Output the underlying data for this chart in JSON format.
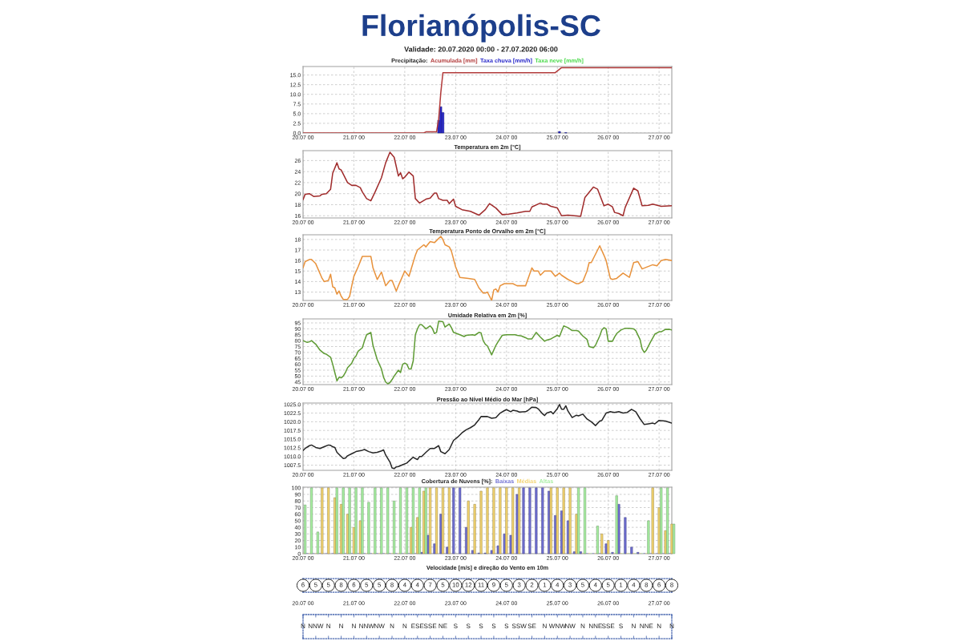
{
  "chart_data": [
    {
      "type": "other",
      "title": "Florianópolis-SC",
      "subtitle": "Validade: 20.07.2020 00:00 - 27.07.2020 06:00"
    },
    {
      "type": "bar",
      "title": "Precipitação:",
      "legend": "top",
      "grid": true,
      "xlim": [
        "2020-07-20T00:00",
        "2020-07-27T06:00"
      ],
      "xticks": [
        {
          "value": "2020-07-20T00:00",
          "label": "20.07 00"
        },
        {
          "value": "2020-07-21T00:00",
          "label": "21.07 00"
        },
        {
          "value": "2020-07-22T00:00",
          "label": "22.07 00"
        },
        {
          "value": "2020-07-23T00:00",
          "label": "23.07 00"
        },
        {
          "value": "2020-07-24T00:00",
          "label": "24.07 00"
        },
        {
          "value": "2020-07-25T00:00",
          "label": "25.07 00"
        },
        {
          "value": "2020-07-26T00:00",
          "label": "26.07 00"
        },
        {
          "value": "2020-07-27T00:00",
          "label": "27.07 00"
        }
      ],
      "ylim": [
        0,
        17.2
      ],
      "yticks": [
        {
          "value": 0,
          "label": "0.0"
        },
        2.5,
        {
          "value": 5,
          "label": "5.0"
        },
        7.5,
        {
          "value": 10,
          "label": "10.0"
        },
        12.5,
        {
          "value": 15,
          "label": "15.0"
        }
      ],
      "series": [
        {
          "name": "Acumulada [mm]",
          "type": "line",
          "color": "#b23b3b",
          "x": [
            "2020-07-20T00:00",
            "2020-07-22T09:00",
            "2020-07-22T10:00",
            "2020-07-22T15:00",
            "2020-07-22T16:00",
            "2020-07-22T17:00",
            "2020-07-22T18:00",
            "2020-07-24T23:00",
            "2020-07-25T02:00",
            "2020-07-27T06:00"
          ],
          "values": [
            0,
            0,
            0.3,
            0.3,
            3.6,
            10.4,
            15.6,
            15.6,
            16.9,
            16.9
          ]
        },
        {
          "name": "Taxa chuva [mm/h]",
          "color": "#2626c9",
          "x": [
            "2020-07-22T16:00",
            "2020-07-22T17:00",
            "2020-07-22T18:00",
            "2020-07-25T01:00",
            "2020-07-25T04:00"
          ],
          "values": [
            3.3,
            6.8,
            5.3,
            0.4,
            0.1
          ]
        },
        {
          "name": "Taxa neve [mm/h]",
          "color": "#44d944"
        }
      ]
    },
    {
      "type": "line",
      "title": "Temperatura em 2m [°C]",
      "grid": true,
      "xlim": [
        "2020-07-20T00:00",
        "2020-07-27T06:00"
      ],
      "xticks": [
        {
          "value": "2020-07-20T00:00",
          "label": "20.07 00"
        },
        {
          "value": "2020-07-21T00:00",
          "label": "21.07 00"
        },
        {
          "value": "2020-07-22T00:00",
          "label": "22.07 00"
        },
        {
          "value": "2020-07-23T00:00",
          "label": "23.07 00"
        },
        {
          "value": "2020-07-24T00:00",
          "label": "24.07 00"
        },
        {
          "value": "2020-07-25T00:00",
          "label": "25.07 00"
        },
        {
          "value": "2020-07-26T00:00",
          "label": "26.07 00"
        },
        {
          "value": "2020-07-27T00:00",
          "label": "27.07 00"
        }
      ],
      "ylim": [
        15.6,
        27.8
      ],
      "yticks": [
        16,
        18,
        20,
        22,
        24,
        26
      ],
      "series": [
        {
          "color": "#a02c2c",
          "x": [
            "2020-07-20T00:00",
            "2020-07-20T01:00",
            "2020-07-20T03:00",
            "2020-07-20T05:00",
            "2020-07-20T08:00",
            "2020-07-20T09:00",
            "2020-07-20T11:00",
            "2020-07-20T13:00",
            "2020-07-20T14:00",
            "2020-07-20T16:00",
            "2020-07-20T17:00",
            "2020-07-20T18:00",
            "2020-07-20T21:00",
            "2020-07-20T23:00",
            "2020-07-21T01:00",
            "2020-07-21T03:00",
            "2020-07-21T04:00",
            "2020-07-21T06:00",
            "2020-07-21T08:00",
            "2020-07-21T10:00",
            "2020-07-21T13:00",
            "2020-07-21T15:00",
            "2020-07-21T17:00",
            "2020-07-21T19:00",
            "2020-07-21T21:00",
            "2020-07-21T22:00",
            "2020-07-21T23:00",
            "2020-07-22T00:00",
            "2020-07-22T02:00",
            "2020-07-22T04:00",
            "2020-07-22T05:00",
            "2020-07-22T07:00",
            "2020-07-22T10:00",
            "2020-07-22T12:00",
            "2020-07-22T14:00",
            "2020-07-22T15:00",
            "2020-07-22T16:00",
            "2020-07-22T18:00",
            "2020-07-22T20:00",
            "2020-07-22T21:00",
            "2020-07-22T23:00",
            "2020-07-23T00:00",
            "2020-07-23T03:00",
            "2020-07-23T07:00",
            "2020-07-23T11:00",
            "2020-07-23T14:00",
            "2020-07-23T16:00",
            "2020-07-23T19:00",
            "2020-07-23T22:00",
            "2020-07-24T01:00",
            "2020-07-24T05:00",
            "2020-07-24T09:00",
            "2020-07-24T11:00",
            "2020-07-24T12:00",
            "2020-07-24T16:00",
            "2020-07-24T17:00",
            "2020-07-24T19:00",
            "2020-07-24T21:00",
            "2020-07-25T00:00",
            "2020-07-25T02:00",
            "2020-07-25T05:00",
            "2020-07-25T11:00",
            "2020-07-25T13:00",
            "2020-07-25T17:00",
            "2020-07-25T19:00",
            "2020-07-25T22:00",
            "2020-07-26T00:00",
            "2020-07-26T02:00",
            "2020-07-26T03:00",
            "2020-07-26T05:00",
            "2020-07-26T07:00",
            "2020-07-26T08:00",
            "2020-07-26T12:00",
            "2020-07-26T14:00",
            "2020-07-26T16:00",
            "2020-07-26T19:00",
            "2020-07-26T21:00",
            "2020-07-27T01:00",
            "2020-07-27T06:00"
          ],
          "values": [
            18.9,
            19.9,
            20.0,
            19.5,
            19.6,
            19.9,
            20.0,
            20.8,
            23.7,
            25.6,
            24.5,
            24.3,
            22.0,
            21.5,
            21.5,
            21.1,
            20.3,
            19.1,
            18.7,
            20.3,
            22.9,
            25.6,
            27.5,
            26.6,
            23.2,
            23.8,
            22.7,
            23.0,
            23.9,
            23.2,
            19.1,
            18.3,
            19.0,
            19.2,
            20.1,
            20.1,
            19.1,
            18.8,
            18.8,
            18.2,
            19.0,
            17.7,
            17.1,
            16.8,
            16.1,
            17.1,
            18.2,
            17.4,
            16.2,
            16.3,
            16.5,
            16.8,
            16.8,
            17.6,
            18.3,
            18.1,
            18.1,
            17.7,
            17.4,
            16.0,
            16.1,
            15.9,
            19.3,
            21.2,
            20.8,
            17.8,
            18.1,
            17.6,
            16.6,
            16.4,
            16.0,
            17.5,
            21.0,
            20.5,
            17.8,
            17.9,
            18.1,
            17.7,
            17.8
          ]
        }
      ]
    },
    {
      "type": "line",
      "title": "Temperatura Ponto de Orvalho em 2m [°C]",
      "grid": true,
      "xlim": [
        "2020-07-20T00:00",
        "2020-07-27T06:00"
      ],
      "xticks": [
        {
          "value": "2020-07-20T00:00",
          "label": "20.07 00"
        },
        {
          "value": "2020-07-21T00:00",
          "label": "21.07 00"
        },
        {
          "value": "2020-07-22T00:00",
          "label": "22.07 00"
        },
        {
          "value": "2020-07-23T00:00",
          "label": "23.07 00"
        },
        {
          "value": "2020-07-24T00:00",
          "label": "24.07 00"
        },
        {
          "value": "2020-07-25T00:00",
          "label": "25.07 00"
        },
        {
          "value": "2020-07-26T00:00",
          "label": "26.07 00"
        },
        {
          "value": "2020-07-27T00:00",
          "label": "27.07 00"
        }
      ],
      "ylim": [
        12.2,
        18.45
      ],
      "yticks": [
        13,
        14,
        15,
        16,
        17,
        18
      ],
      "series": [
        {
          "color": "#e8923c",
          "x": [
            "2020-07-20T00:00",
            "2020-07-20T01:00",
            "2020-07-20T03:00",
            "2020-07-20T04:00",
            "2020-07-20T06:00",
            "2020-07-20T09:00",
            "2020-07-20T10:00",
            "2020-07-20T12:00",
            "2020-07-20T13:00",
            "2020-07-20T14:00",
            "2020-07-20T15:00",
            "2020-07-20T16:00",
            "2020-07-20T17:00",
            "2020-07-20T18:00",
            "2020-07-20T19:00",
            "2020-07-20T21:00",
            "2020-07-20T22:00",
            "2020-07-20T23:00",
            "2020-07-21T00:00",
            "2020-07-21T02:00",
            "2020-07-21T04:00",
            "2020-07-21T08:00",
            "2020-07-21T09:00",
            "2020-07-21T11:00",
            "2020-07-21T13:00",
            "2020-07-21T15:00",
            "2020-07-21T17:00",
            "2020-07-21T18:00",
            "2020-07-21T20:00",
            "2020-07-21T21:00",
            "2020-07-22T00:00",
            "2020-07-22T02:00",
            "2020-07-22T05:00",
            "2020-07-22T06:00",
            "2020-07-22T09:00",
            "2020-07-22T10:00",
            "2020-07-22T12:00",
            "2020-07-22T14:00",
            "2020-07-22T17:00",
            "2020-07-22T18:00",
            "2020-07-22T19:00",
            "2020-07-22T21:00",
            "2020-07-22T22:00",
            "2020-07-23T00:00",
            "2020-07-23T02:00",
            "2020-07-23T06:00",
            "2020-07-23T09:00",
            "2020-07-23T11:00",
            "2020-07-23T13:00",
            "2020-07-23T14:00",
            "2020-07-23T15:00",
            "2020-07-23T16:00",
            "2020-07-23T17:00",
            "2020-07-23T18:00",
            "2020-07-23T19:00",
            "2020-07-23T20:00",
            "2020-07-23T21:00",
            "2020-07-23T23:00",
            "2020-07-24T03:00",
            "2020-07-24T05:00",
            "2020-07-24T09:00",
            "2020-07-24T12:00",
            "2020-07-24T13:00",
            "2020-07-24T15:00",
            "2020-07-24T16:00",
            "2020-07-24T18:00",
            "2020-07-24T21:00",
            "2020-07-24T23:00",
            "2020-07-25T01:00",
            "2020-07-25T02:00",
            "2020-07-25T05:00",
            "2020-07-25T07:00",
            "2020-07-25T09:00",
            "2020-07-25T10:00",
            "2020-07-25T12:00",
            "2020-07-25T14:00",
            "2020-07-25T15:00",
            "2020-07-25T16:00",
            "2020-07-25T17:00",
            "2020-07-25T20:00",
            "2020-07-25T22:00",
            "2020-07-25T23:00",
            "2020-07-26T01:00",
            "2020-07-26T02:00",
            "2020-07-26T04:00",
            "2020-07-26T07:00",
            "2020-07-26T10:00",
            "2020-07-26T12:00",
            "2020-07-26T14:00",
            "2020-07-26T16:00",
            "2020-07-26T21:00",
            "2020-07-26T23:00",
            "2020-07-27T01:00",
            "2020-07-27T03:00",
            "2020-07-27T06:00"
          ],
          "values": [
            15.3,
            15.9,
            16.1,
            16.1,
            15.7,
            14.3,
            14.0,
            14.1,
            14.7,
            13.5,
            13.4,
            12.8,
            13.1,
            12.6,
            12.3,
            12.3,
            12.6,
            13.6,
            14.5,
            15.4,
            16.4,
            16.4,
            15.3,
            14.2,
            14.9,
            13.6,
            14.1,
            14.1,
            13.1,
            13.6,
            15.0,
            14.5,
            16.5,
            17.0,
            17.5,
            17.3,
            17.8,
            17.7,
            18.3,
            18.0,
            17.5,
            17.3,
            16.9,
            15.4,
            14.4,
            14.3,
            14.2,
            13.4,
            12.9,
            12.9,
            13.0,
            12.6,
            12.2,
            13.2,
            13.3,
            13.0,
            13.6,
            13.8,
            13.8,
            13.6,
            13.6,
            15.3,
            15.0,
            15.0,
            14.6,
            15.0,
            15.0,
            14.5,
            14.8,
            14.6,
            14.2,
            14.0,
            13.8,
            13.8,
            14.0,
            15.0,
            15.8,
            15.8,
            16.2,
            17.4,
            16.5,
            16.0,
            14.3,
            14.2,
            14.3,
            14.8,
            14.4,
            15.8,
            15.9,
            15.2,
            15.6,
            15.5,
            16.0,
            16.1,
            16.0
          ]
        }
      ]
    },
    {
      "type": "line",
      "title": "Umidade Relativa em 2m [%]",
      "grid": true,
      "xlim": [
        "2020-07-20T00:00",
        "2020-07-27T06:00"
      ],
      "xticks": [
        {
          "value": "2020-07-20T00:00",
          "label": "20.07 00"
        },
        {
          "value": "2020-07-21T00:00",
          "label": "21.07 00"
        },
        {
          "value": "2020-07-22T00:00",
          "label": "22.07 00"
        },
        {
          "value": "2020-07-23T00:00",
          "label": "23.07 00"
        },
        {
          "value": "2020-07-24T00:00",
          "label": "24.07 00"
        },
        {
          "value": "2020-07-25T00:00",
          "label": "25.07 00"
        },
        {
          "value": "2020-07-26T00:00",
          "label": "26.07 00"
        },
        {
          "value": "2020-07-27T00:00",
          "label": "27.07 00"
        }
      ],
      "ylim": [
        42.8,
        98.4
      ],
      "yticks": [
        45,
        50,
        55,
        60,
        65,
        70,
        75,
        80,
        85,
        90,
        95
      ],
      "series": [
        {
          "color": "#5f9b35",
          "x": [
            "2020-07-20T00:00",
            "2020-07-20T02:00",
            "2020-07-20T03:00",
            "2020-07-20T04:00",
            "2020-07-20T06:00",
            "2020-07-20T08:00",
            "2020-07-20T10:00",
            "2020-07-20T11:00",
            "2020-07-20T13:00",
            "2020-07-20T14:00",
            "2020-07-20T15:00",
            "2020-07-20T16:00",
            "2020-07-20T17:00",
            "2020-07-20T18:00",
            "2020-07-20T19:00",
            "2020-07-20T20:00",
            "2020-07-20T21:00",
            "2020-07-20T23:00",
            "2020-07-21T00:00",
            "2020-07-21T01:00",
            "2020-07-21T02:00",
            "2020-07-21T04:00",
            "2020-07-21T05:00",
            "2020-07-21T06:00",
            "2020-07-21T08:00",
            "2020-07-21T09:00",
            "2020-07-21T11:00",
            "2020-07-21T12:00",
            "2020-07-21T13:00",
            "2020-07-21T14:00",
            "2020-07-21T15:00",
            "2020-07-21T16:00",
            "2020-07-21T17:00",
            "2020-07-21T18:00",
            "2020-07-21T19:00",
            "2020-07-21T21:00",
            "2020-07-21T22:00",
            "2020-07-21T23:00",
            "2020-07-22T00:00",
            "2020-07-22T01:00",
            "2020-07-22T02:00",
            "2020-07-22T03:00",
            "2020-07-22T04:00",
            "2020-07-22T05:00",
            "2020-07-22T06:00",
            "2020-07-22T07:00",
            "2020-07-22T08:00",
            "2020-07-22T10:00",
            "2020-07-22T12:00",
            "2020-07-22T13:00",
            "2020-07-22T14:00",
            "2020-07-22T15:00",
            "2020-07-22T16:00",
            "2020-07-22T18:00",
            "2020-07-22T19:00",
            "2020-07-22T21:00",
            "2020-07-22T22:00",
            "2020-07-22T23:00",
            "2020-07-23T02:00",
            "2020-07-23T04:00",
            "2020-07-23T05:00",
            "2020-07-23T08:00",
            "2020-07-23T09:00",
            "2020-07-23T11:00",
            "2020-07-23T12:00",
            "2020-07-23T13:00",
            "2020-07-23T14:00",
            "2020-07-23T15:00",
            "2020-07-23T17:00",
            "2020-07-23T19:00",
            "2020-07-23T20:00",
            "2020-07-23T22:00",
            "2020-07-24T00:00",
            "2020-07-24T02:00",
            "2020-07-24T04:00",
            "2020-07-24T05:00",
            "2020-07-24T07:00",
            "2020-07-24T09:00",
            "2020-07-24T10:00",
            "2020-07-24T12:00",
            "2020-07-24T14:00",
            "2020-07-24T16:00",
            "2020-07-24T18:00",
            "2020-07-24T19:00",
            "2020-07-24T21:00",
            "2020-07-24T22:00",
            "2020-07-25T00:00",
            "2020-07-25T01:00",
            "2020-07-25T02:00",
            "2020-07-25T03:00",
            "2020-07-25T05:00",
            "2020-07-25T07:00",
            "2020-07-25T09:00",
            "2020-07-25T10:00",
            "2020-07-25T12:00",
            "2020-07-25T14:00",
            "2020-07-25T15:00",
            "2020-07-25T17:00",
            "2020-07-25T18:00",
            "2020-07-25T20:00",
            "2020-07-25T21:00",
            "2020-07-25T22:00",
            "2020-07-25T23:00",
            "2020-07-26T00:00",
            "2020-07-26T02:00",
            "2020-07-26T03:00",
            "2020-07-26T04:00",
            "2020-07-26T06:00",
            "2020-07-26T08:00",
            "2020-07-26T10:00",
            "2020-07-26T12:00",
            "2020-07-26T13:00",
            "2020-07-26T15:00",
            "2020-07-26T16:00",
            "2020-07-26T17:00",
            "2020-07-26T18:00",
            "2020-07-26T20:00",
            "2020-07-26T22:00",
            "2020-07-27T00:00",
            "2020-07-27T01:00",
            "2020-07-27T03:00",
            "2020-07-27T05:00",
            "2020-07-27T06:00"
          ],
          "values": [
            80,
            78.5,
            79,
            80,
            77,
            72,
            69,
            68.5,
            66,
            60,
            53,
            46,
            49,
            48.5,
            50,
            53,
            57,
            61,
            65,
            67,
            71,
            74,
            80,
            85,
            87,
            76,
            64,
            60,
            56,
            49,
            45,
            43.5,
            44.5,
            47,
            50,
            55,
            53,
            60,
            61,
            60,
            56,
            56,
            63,
            85,
            90,
            93.5,
            93.5,
            90,
            92.5,
            90.5,
            86,
            87,
            96.5,
            96,
            91.5,
            94,
            91,
            87,
            85,
            83.5,
            84.5,
            85,
            84.5,
            87,
            86.5,
            80,
            77,
            75.5,
            68,
            76,
            79,
            84.5,
            85,
            85,
            85,
            84.5,
            84,
            82.5,
            81.5,
            81.5,
            87,
            83,
            79.5,
            80.5,
            81.5,
            82.5,
            84.5,
            83.5,
            88,
            92.5,
            91,
            88.5,
            88.5,
            88,
            84,
            81,
            75,
            74,
            76,
            84,
            89,
            91,
            90,
            79.5,
            79.5,
            83,
            86,
            89,
            90.5,
            90.5,
            90,
            88.5,
            81,
            73,
            70,
            72,
            79,
            85.5,
            87.5,
            87.5,
            89.5,
            89.5,
            89
          ]
        }
      ]
    },
    {
      "type": "line",
      "title": "Pressão ao Nível Médio do Mar [hPa]",
      "grid": true,
      "xlim": [
        "2020-07-20T00:00",
        "2020-07-27T06:00"
      ],
      "xticks": [
        {
          "value": "2020-07-20T00:00",
          "label": "20.07 00"
        },
        {
          "value": "2020-07-21T00:00",
          "label": "21.07 00"
        },
        {
          "value": "2020-07-22T00:00",
          "label": "22.07 00"
        },
        {
          "value": "2020-07-23T00:00",
          "label": "23.07 00"
        },
        {
          "value": "2020-07-24T00:00",
          "label": "24.07 00"
        },
        {
          "value": "2020-07-25T00:00",
          "label": "25.07 00"
        },
        {
          "value": "2020-07-26T00:00",
          "label": "26.07 00"
        },
        {
          "value": "2020-07-27T00:00",
          "label": "27.07 00"
        }
      ],
      "ylim": [
        1006.0,
        1025.4
      ],
      "yticks": [
        1007.5,
        {
          "value": 1010,
          "label": "1010.0"
        },
        1012.5,
        {
          "value": 1015,
          "label": "1015.0"
        },
        1017.5,
        {
          "value": 1020,
          "label": "1020.0"
        },
        1022.5,
        {
          "value": 1025,
          "label": "1025.0"
        }
      ],
      "series": [
        {
          "color": "#262626",
          "x": [
            "2020-07-20T00:00",
            "2020-07-20T01:00",
            "2020-07-20T03:00",
            "2020-07-20T04:00",
            "2020-07-20T06:00",
            "2020-07-20T08:00",
            "2020-07-20T10:00",
            "2020-07-20T12:00",
            "2020-07-20T13:00",
            "2020-07-20T14:00",
            "2020-07-20T15:00",
            "2020-07-20T16:00",
            "2020-07-20T18:00",
            "2020-07-20T19:00",
            "2020-07-20T20:00",
            "2020-07-20T21:00",
            "2020-07-20T23:00",
            "2020-07-21T01:00",
            "2020-07-21T04:00",
            "2020-07-21T05:00",
            "2020-07-21T07:00",
            "2020-07-21T09:00",
            "2020-07-21T11:00",
            "2020-07-21T13:00",
            "2020-07-21T14:00",
            "2020-07-21T15:00",
            "2020-07-21T17:00",
            "2020-07-21T18:00",
            "2020-07-21T19:00",
            "2020-07-21T20:00",
            "2020-07-21T21:00",
            "2020-07-21T23:00",
            "2020-07-22T01:00",
            "2020-07-22T02:00",
            "2020-07-22T04:00",
            "2020-07-22T05:00",
            "2020-07-22T06:00",
            "2020-07-22T07:00",
            "2020-07-22T08:00",
            "2020-07-22T10:00",
            "2020-07-22T12:00",
            "2020-07-22T14:00",
            "2020-07-22T16:00",
            "2020-07-22T17:00",
            "2020-07-22T19:00",
            "2020-07-22T21:00",
            "2020-07-22T23:00",
            "2020-07-23T01:00",
            "2020-07-23T03:00",
            "2020-07-23T05:00",
            "2020-07-23T07:00",
            "2020-07-23T09:00",
            "2020-07-23T11:00",
            "2020-07-23T12:00",
            "2020-07-23T15:00",
            "2020-07-23T17:00",
            "2020-07-23T19:00",
            "2020-07-23T21:00",
            "2020-07-23T23:00",
            "2020-07-24T00:00",
            "2020-07-24T02:00",
            "2020-07-24T03:00",
            "2020-07-24T05:00",
            "2020-07-24T06:00",
            "2020-07-24T09:00",
            "2020-07-24T10:00",
            "2020-07-24T12:00",
            "2020-07-24T14:00",
            "2020-07-24T15:00",
            "2020-07-24T17:00",
            "2020-07-24T18:00",
            "2020-07-24T19:00",
            "2020-07-24T21:00",
            "2020-07-24T22:00",
            "2020-07-25T00:00",
            "2020-07-25T01:00",
            "2020-07-25T02:00",
            "2020-07-25T03:00",
            "2020-07-25T04:00",
            "2020-07-25T05:00",
            "2020-07-25T07:00",
            "2020-07-25T09:00",
            "2020-07-25T10:00",
            "2020-07-25T12:00",
            "2020-07-25T14:00",
            "2020-07-25T16:00",
            "2020-07-25T18:00",
            "2020-07-25T20:00",
            "2020-07-25T21:00",
            "2020-07-25T23:00",
            "2020-07-26T01:00",
            "2020-07-26T03:00",
            "2020-07-26T05:00",
            "2020-07-26T07:00",
            "2020-07-26T09:00",
            "2020-07-26T11:00",
            "2020-07-26T13:00",
            "2020-07-26T15:00",
            "2020-07-26T17:00",
            "2020-07-26T19:00",
            "2020-07-26T21:00",
            "2020-07-26T22:00",
            "2020-07-27T00:00",
            "2020-07-27T03:00",
            "2020-07-27T06:00"
          ],
          "values": [
            1011.7,
            1012.3,
            1013.1,
            1013.3,
            1012.6,
            1012.3,
            1012.8,
            1013.3,
            1013.2,
            1012.8,
            1012.6,
            1011.2,
            1010.0,
            1009.4,
            1009.5,
            1010.2,
            1010.8,
            1011.4,
            1011.8,
            1012.0,
            1011.4,
            1011.0,
            1011.2,
            1011.6,
            1011.9,
            1010.4,
            1008.4,
            1006.7,
            1006.5,
            1007.0,
            1007.1,
            1007.6,
            1008.1,
            1008.7,
            1009.8,
            1009.4,
            1009.1,
            1010.0,
            1010.0,
            1011.2,
            1012.3,
            1012.3,
            1013.1,
            1011.4,
            1010.8,
            1012.0,
            1014.6,
            1015.6,
            1016.8,
            1017.7,
            1018.3,
            1019.1,
            1020.6,
            1021.5,
            1021.5,
            1021.0,
            1021.2,
            1022.5,
            1023.2,
            1023.5,
            1022.9,
            1023.3,
            1023.1,
            1022.8,
            1022.9,
            1023.2,
            1024.2,
            1024.1,
            1023.7,
            1022.3,
            1021.8,
            1022.5,
            1022.9,
            1022.3,
            1023.8,
            1025.0,
            1023.6,
            1023.6,
            1024.6,
            1023.1,
            1021.2,
            1021.9,
            1021.7,
            1022.2,
            1020.8,
            1020.0,
            1018.9,
            1020.2,
            1020.4,
            1022.5,
            1022.9,
            1022.7,
            1022.9,
            1022.5,
            1022.7,
            1023.6,
            1022.9,
            1020.9,
            1019.2,
            1019.4,
            1019.6,
            1019.4,
            1020.4,
            1020.2,
            1019.6
          ]
        }
      ]
    },
    {
      "type": "bar",
      "title": "Cobertura de Nuvens [%]:",
      "legend": "top",
      "grid": true,
      "xlim": [
        "2020-07-20T00:00",
        "2020-07-27T06:00"
      ],
      "xticks": [
        {
          "value": "2020-07-20T00:00",
          "label": "20.07 00"
        },
        {
          "value": "2020-07-21T00:00",
          "label": "21.07 00"
        },
        {
          "value": "2020-07-22T00:00",
          "label": "22.07 00"
        },
        {
          "value": "2020-07-23T00:00",
          "label": "23.07 00"
        },
        {
          "value": "2020-07-24T00:00",
          "label": "24.07 00"
        },
        {
          "value": "2020-07-25T00:00",
          "label": "25.07 00"
        },
        {
          "value": "2020-07-26T00:00",
          "label": "26.07 00"
        },
        {
          "value": "2020-07-27T00:00",
          "label": "27.07 00"
        }
      ],
      "ylim": [
        0,
        101
      ],
      "yticks": [
        0,
        10,
        20,
        30,
        40,
        50,
        60,
        70,
        80,
        90,
        100
      ],
      "x": [
        "2020-07-20T00:00",
        "2020-07-20T03:00",
        "2020-07-20T06:00",
        "2020-07-20T09:00",
        "2020-07-20T12:00",
        "2020-07-20T15:00",
        "2020-07-20T18:00",
        "2020-07-20T21:00",
        "2020-07-21T00:00",
        "2020-07-21T03:00",
        "2020-07-21T06:00",
        "2020-07-21T09:00",
        "2020-07-21T12:00",
        "2020-07-21T15:00",
        "2020-07-21T18:00",
        "2020-07-21T21:00",
        "2020-07-22T00:00",
        "2020-07-22T03:00",
        "2020-07-22T06:00",
        "2020-07-22T09:00",
        "2020-07-22T12:00",
        "2020-07-22T15:00",
        "2020-07-22T18:00",
        "2020-07-22T21:00",
        "2020-07-23T00:00",
        "2020-07-23T03:00",
        "2020-07-23T06:00",
        "2020-07-23T09:00",
        "2020-07-23T12:00",
        "2020-07-23T15:00",
        "2020-07-23T18:00",
        "2020-07-23T21:00",
        "2020-07-24T00:00",
        "2020-07-24T03:00",
        "2020-07-24T06:00",
        "2020-07-24T09:00",
        "2020-07-24T12:00",
        "2020-07-24T15:00",
        "2020-07-24T18:00",
        "2020-07-24T21:00",
        "2020-07-25T00:00",
        "2020-07-25T03:00",
        "2020-07-25T06:00",
        "2020-07-25T09:00",
        "2020-07-25T12:00",
        "2020-07-25T15:00",
        "2020-07-25T18:00",
        "2020-07-25T21:00",
        "2020-07-26T00:00",
        "2020-07-26T03:00",
        "2020-07-26T06:00",
        "2020-07-26T09:00",
        "2020-07-26T12:00",
        "2020-07-26T15:00",
        "2020-07-26T18:00",
        "2020-07-26T21:00",
        "2020-07-27T00:00",
        "2020-07-27T03:00",
        "2020-07-27T06:00"
      ],
      "series": [
        {
          "name": "Baixas",
          "color": "#6e6ed2",
          "values": [
            0,
            0,
            0,
            0,
            0,
            0,
            0,
            0,
            0,
            0,
            0,
            0,
            0,
            0,
            0,
            0,
            0,
            0,
            0,
            2,
            28,
            15,
            60,
            10,
            100,
            100,
            40,
            5,
            1,
            1,
            5,
            12,
            30,
            28,
            90,
            100,
            100,
            100,
            100,
            95,
            58,
            65,
            50,
            3,
            3,
            0,
            0,
            0,
            15,
            2,
            75,
            55,
            10,
            2,
            0,
            0,
            0,
            0,
            0
          ]
        },
        {
          "name": "Médias",
          "color": "#f2d36e",
          "values": [
            0,
            0,
            0,
            100,
            100,
            85,
            75,
            60,
            40,
            50,
            0,
            0,
            0,
            0,
            0,
            0,
            0,
            40,
            55,
            95,
            100,
            100,
            100,
            100,
            null,
            null,
            80,
            75,
            95,
            100,
            100,
            100,
            100,
            100,
            100,
            null,
            null,
            null,
            null,
            100,
            100,
            100,
            100,
            60,
            0,
            0,
            0,
            30,
            20,
            0,
            0,
            0,
            0,
            0,
            0,
            100,
            70,
            35,
            45
          ]
        },
        {
          "name": "Altas",
          "color": "#a6eea0",
          "values": [
            74,
            100,
            33,
            null,
            null,
            100,
            100,
            100,
            100,
            100,
            78,
            100,
            100,
            100,
            80,
            100,
            100,
            100,
            100,
            100,
            null,
            null,
            null,
            null,
            null,
            null,
            null,
            null,
            null,
            null,
            null,
            null,
            null,
            null,
            null,
            null,
            null,
            null,
            null,
            null,
            null,
            null,
            null,
            100,
            100,
            0,
            42,
            0,
            0,
            88,
            0,
            0,
            0,
            0,
            50,
            null,
            100,
            100,
            45
          ]
        }
      ]
    },
    {
      "type": "other",
      "title": "Velocidade [m/s] e direção do Vento em 10m",
      "data_labels": true,
      "categories": [
        "20.07 00",
        null,
        null,
        null,
        "21.07 00",
        null,
        null,
        null,
        "22.07 00",
        null,
        null,
        null,
        "23.07 00",
        null,
        null,
        null,
        "24.07 00",
        null,
        null,
        null,
        "25.07 00",
        null,
        null,
        null,
        "26.07 00",
        null,
        null,
        null,
        "27.07 00",
        null
      ],
      "values": [
        6,
        5,
        5,
        8,
        6,
        5,
        5,
        8,
        4,
        4,
        7,
        5,
        10,
        12,
        11,
        9,
        5,
        3,
        2,
        1,
        4,
        3,
        5,
        4,
        5,
        1,
        4,
        8,
        6,
        8
      ]
    },
    {
      "type": "other",
      "categories": [
        "N",
        "NNW",
        "N",
        "N",
        "N",
        "NNW",
        "NW",
        "N",
        "N",
        "ESE",
        "SSE",
        "NE",
        "S",
        "S",
        "S",
        "S",
        "S",
        "SSW",
        "SE",
        "N",
        "WNW",
        "NW",
        "N",
        "NNE",
        "SSE",
        "S",
        "N",
        "NNE",
        "N",
        "N"
      ]
    }
  ]
}
